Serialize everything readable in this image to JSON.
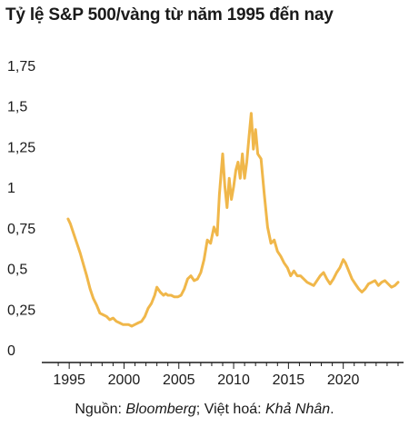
{
  "colors": {
    "line": "#F0B74A",
    "axis": "#1a1a1a",
    "text": "#1a1a1a",
    "background": "#ffffff"
  },
  "source": {
    "prefix": "Nguồn: ",
    "source_name": "Bloomberg",
    "middle": "; Việt hoá: ",
    "translator": "Khả Nhân",
    "suffix": "."
  },
  "chart_data": {
    "type": "line",
    "title": "Tỷ lệ S&P 500/vàng từ năm 1995 đến nay",
    "xlabel": "",
    "ylabel": "",
    "ylim": [
      0,
      1.75
    ],
    "xlim": [
      1992.5,
      2025.5
    ],
    "grid": false,
    "legend": "none",
    "x_ticks": [
      {
        "value": 1995,
        "label": "1995"
      },
      {
        "value": 2000,
        "label": "2000"
      },
      {
        "value": 2005,
        "label": "2005"
      },
      {
        "value": 2010,
        "label": "2010"
      },
      {
        "value": 2015,
        "label": "2015"
      },
      {
        "value": 2020,
        "label": "2020"
      }
    ],
    "y_ticks": [
      {
        "value": 0,
        "label": "0"
      },
      {
        "value": 0.25,
        "label": "0,25"
      },
      {
        "value": 0.5,
        "label": "0,5"
      },
      {
        "value": 0.75,
        "label": "0,75"
      },
      {
        "value": 1,
        "label": "1"
      },
      {
        "value": 1.25,
        "label": "1,25"
      },
      {
        "value": 1.5,
        "label": "1,5"
      },
      {
        "value": 1.75,
        "label": "1,75"
      }
    ],
    "series": [
      {
        "x": [
          1994.9,
          1995.1,
          1995.4,
          1995.7,
          1996.0,
          1996.3,
          1996.6,
          1996.9,
          1997.2,
          1997.5,
          1997.8,
          1998.1,
          1998.4,
          1998.7,
          1999.0,
          1999.3,
          1999.6,
          1999.9,
          2000.1,
          2000.4,
          2000.7,
          2001.0,
          2001.3,
          2001.6,
          2001.9,
          2002.2,
          2002.5,
          2002.8,
          2003.0,
          2003.3,
          2003.6,
          2003.8,
          2004.0,
          2004.3,
          2004.6,
          2004.9,
          2005.2,
          2005.5,
          2005.8,
          2006.1,
          2006.4,
          2006.7,
          2007.0,
          2007.3,
          2007.6,
          2007.9,
          2008.2,
          2008.5,
          2008.7,
          2009.0,
          2009.2,
          2009.4,
          2009.6,
          2009.8,
          2010.0,
          2010.2,
          2010.4,
          2010.6,
          2010.8,
          2011.0,
          2011.2,
          2011.4,
          2011.6,
          2011.8,
          2012.0,
          2012.2,
          2012.5,
          2012.8,
          2013.1,
          2013.4,
          2013.7,
          2014.0,
          2014.3,
          2014.6,
          2014.9,
          2015.2,
          2015.5,
          2015.8,
          2016.1,
          2016.4,
          2016.7,
          2017.0,
          2017.3,
          2017.6,
          2017.9,
          2018.2,
          2018.5,
          2018.8,
          2019.1,
          2019.4,
          2019.7,
          2020.0,
          2020.2,
          2020.5,
          2020.8,
          2021.1,
          2021.4,
          2021.7,
          2022.0,
          2022.3,
          2022.6,
          2022.9,
          2023.2,
          2023.5,
          2023.8,
          2024.1,
          2024.4,
          2024.7,
          2025.0
        ],
        "values": [
          0.85,
          0.82,
          0.76,
          0.7,
          0.64,
          0.57,
          0.5,
          0.42,
          0.36,
          0.32,
          0.27,
          0.26,
          0.25,
          0.23,
          0.24,
          0.22,
          0.21,
          0.2,
          0.2,
          0.2,
          0.19,
          0.2,
          0.21,
          0.22,
          0.25,
          0.3,
          0.33,
          0.38,
          0.43,
          0.4,
          0.38,
          0.39,
          0.38,
          0.38,
          0.37,
          0.37,
          0.38,
          0.42,
          0.48,
          0.5,
          0.47,
          0.48,
          0.52,
          0.6,
          0.72,
          0.7,
          0.8,
          0.75,
          1.0,
          1.25,
          1.05,
          0.92,
          1.1,
          0.97,
          1.05,
          1.15,
          1.2,
          1.1,
          1.25,
          1.1,
          1.2,
          1.35,
          1.5,
          1.28,
          1.4,
          1.25,
          1.22,
          1.0,
          0.8,
          0.7,
          0.72,
          0.65,
          0.62,
          0.58,
          0.55,
          0.5,
          0.53,
          0.5,
          0.5,
          0.48,
          0.46,
          0.45,
          0.44,
          0.47,
          0.5,
          0.52,
          0.48,
          0.45,
          0.48,
          0.52,
          0.55,
          0.6,
          0.58,
          0.53,
          0.48,
          0.45,
          0.42,
          0.4,
          0.42,
          0.45,
          0.46,
          0.47,
          0.44,
          0.46,
          0.47,
          0.45,
          0.43,
          0.44,
          0.46
        ]
      }
    ]
  }
}
